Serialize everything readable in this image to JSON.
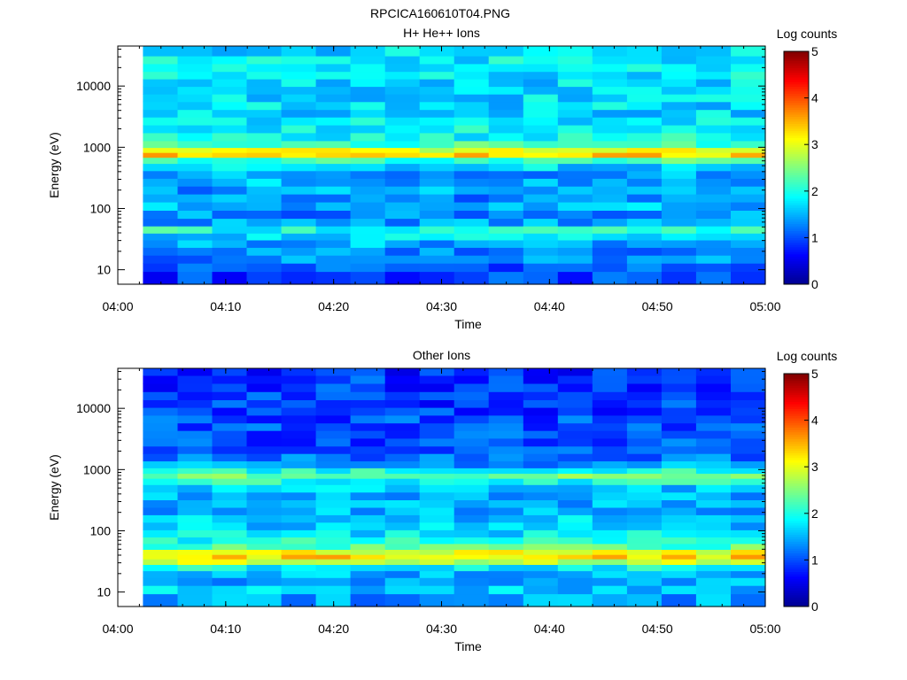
{
  "figure_title": "RPCICA160610T04.PNG",
  "colors": {
    "colormap": [
      "#00008f",
      "#0000ff",
      "#0080ff",
      "#00ffff",
      "#80ff80",
      "#ffff00",
      "#ff8000",
      "#ff0000",
      "#800000"
    ],
    "axes": "#000000",
    "background": "#ffffff"
  },
  "chart_data": [
    {
      "type": "heatmap",
      "title": "H+ He++ Ions",
      "xlabel": "Time",
      "ylabel": "Energy (eV)",
      "yscale": "log",
      "xlim": [
        "04:00",
        "05:00"
      ],
      "ylim": [
        5.8,
        45000
      ],
      "x_ticks": [
        "04:00",
        "04:10",
        "04:20",
        "04:30",
        "04:40",
        "04:50",
        "05:00"
      ],
      "y_ticks": [
        {
          "value": 10,
          "label": "10"
        },
        {
          "value": 100,
          "label": "100"
        },
        {
          "value": 1000,
          "label": "1000"
        },
        {
          "value": 10000,
          "label": "10000"
        }
      ],
      "data_start": "04:02:20",
      "data_end": "05:00:00",
      "time_columns": 18,
      "energy_bins": [
        {
          "e": 8,
          "v": 0.9
        },
        {
          "e": 11,
          "v": 1.1
        },
        {
          "e": 15,
          "v": 1.3
        },
        {
          "e": 20,
          "v": 1.3
        },
        {
          "e": 27,
          "v": 1.5
        },
        {
          "e": 35,
          "v": 1.7
        },
        {
          "e": 45,
          "v": 2.0
        },
        {
          "e": 60,
          "v": 1.4
        },
        {
          "e": 80,
          "v": 1.3
        },
        {
          "e": 110,
          "v": 1.5
        },
        {
          "e": 150,
          "v": 1.3
        },
        {
          "e": 200,
          "v": 1.4
        },
        {
          "e": 270,
          "v": 1.5
        },
        {
          "e": 360,
          "v": 1.4
        },
        {
          "e": 480,
          "v": 1.7
        },
        {
          "e": 620,
          "v": 2.2
        },
        {
          "e": 760,
          "v": 3.3
        },
        {
          "e": 900,
          "v": 2.9
        },
        {
          "e": 1100,
          "v": 2.2
        },
        {
          "e": 1500,
          "v": 1.9
        },
        {
          "e": 2000,
          "v": 1.9
        },
        {
          "e": 2700,
          "v": 1.8
        },
        {
          "e": 3600,
          "v": 1.7
        },
        {
          "e": 4800,
          "v": 1.7
        },
        {
          "e": 6500,
          "v": 1.7
        },
        {
          "e": 8500,
          "v": 1.7
        },
        {
          "e": 11500,
          "v": 1.7
        },
        {
          "e": 15000,
          "v": 1.8
        },
        {
          "e": 20000,
          "v": 1.8
        },
        {
          "e": 27000,
          "v": 1.8
        },
        {
          "e": 36000,
          "v": 1.7
        }
      ],
      "colorbar": {
        "label": "Log counts",
        "min": 0,
        "max": 5,
        "ticks": [
          "0",
          "1",
          "2",
          "3",
          "4",
          "5"
        ]
      }
    },
    {
      "type": "heatmap",
      "title": "Other Ions",
      "xlabel": "Time",
      "ylabel": "Energy (eV)",
      "yscale": "log",
      "xlim": [
        "04:00",
        "05:00"
      ],
      "ylim": [
        5.8,
        45000
      ],
      "x_ticks": [
        "04:00",
        "04:10",
        "04:20",
        "04:30",
        "04:40",
        "04:50",
        "05:00"
      ],
      "y_ticks": [
        {
          "value": 10,
          "label": "10"
        },
        {
          "value": 100,
          "label": "100"
        },
        {
          "value": 1000,
          "label": "1000"
        },
        {
          "value": 10000,
          "label": "10000"
        }
      ],
      "data_start": "04:02:20",
      "data_end": "05:00:00",
      "time_columns": 18,
      "energy_bins": [
        {
          "e": 8,
          "v": 1.4
        },
        {
          "e": 11,
          "v": 1.6
        },
        {
          "e": 15,
          "v": 1.5
        },
        {
          "e": 20,
          "v": 1.5
        },
        {
          "e": 25,
          "v": 1.9
        },
        {
          "e": 32,
          "v": 2.8
        },
        {
          "e": 38,
          "v": 3.3
        },
        {
          "e": 45,
          "v": 3.0
        },
        {
          "e": 55,
          "v": 2.3
        },
        {
          "e": 70,
          "v": 2.0
        },
        {
          "e": 90,
          "v": 1.8
        },
        {
          "e": 120,
          "v": 1.6
        },
        {
          "e": 160,
          "v": 1.6
        },
        {
          "e": 210,
          "v": 1.5
        },
        {
          "e": 280,
          "v": 1.5
        },
        {
          "e": 370,
          "v": 1.5
        },
        {
          "e": 500,
          "v": 1.6
        },
        {
          "e": 650,
          "v": 2.0
        },
        {
          "e": 800,
          "v": 2.4
        },
        {
          "e": 950,
          "v": 2.0
        },
        {
          "e": 1200,
          "v": 1.4
        },
        {
          "e": 1600,
          "v": 1.2
        },
        {
          "e": 2100,
          "v": 1.0
        },
        {
          "e": 2800,
          "v": 1.0
        },
        {
          "e": 3800,
          "v": 1.0
        },
        {
          "e": 5000,
          "v": 1.0
        },
        {
          "e": 6700,
          "v": 1.0
        },
        {
          "e": 9000,
          "v": 0.9
        },
        {
          "e": 12000,
          "v": 0.9
        },
        {
          "e": 16000,
          "v": 0.9
        },
        {
          "e": 22000,
          "v": 0.9
        },
        {
          "e": 30000,
          "v": 0.9
        },
        {
          "e": 40000,
          "v": 0.8
        }
      ],
      "colorbar": {
        "label": "Log counts",
        "min": 0,
        "max": 5,
        "ticks": [
          "0",
          "1",
          "2",
          "3",
          "4",
          "5"
        ]
      }
    }
  ]
}
